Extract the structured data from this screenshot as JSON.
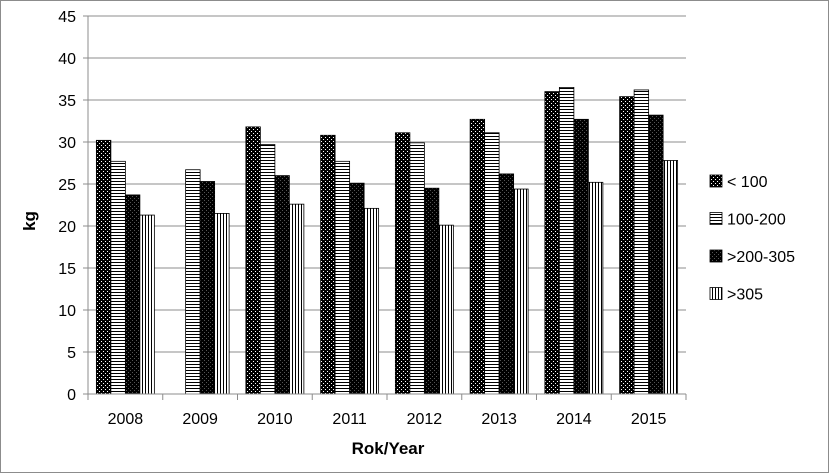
{
  "chart_data": {
    "type": "bar",
    "title": "",
    "xlabel": "Rok/Year",
    "ylabel": "kg",
    "ylim": [
      0,
      45
    ],
    "y_ticks": [
      0,
      5,
      10,
      15,
      20,
      25,
      30,
      35,
      40,
      45
    ],
    "grid": true,
    "legend_position": "right",
    "categories": [
      "2008",
      "2009",
      "2010",
      "2011",
      "2012",
      "2013",
      "2014",
      "2015"
    ],
    "series": [
      {
        "name": "< 100",
        "pattern": "checker",
        "values": [
          30.2,
          null,
          31.8,
          30.8,
          31.1,
          32.7,
          36.0,
          35.4
        ]
      },
      {
        "name": "100-200",
        "pattern": "horizontal",
        "values": [
          27.7,
          26.7,
          29.7,
          27.7,
          29.9,
          31.1,
          36.5,
          36.2
        ]
      },
      {
        "name": ">200-305",
        "pattern": "dark",
        "values": [
          23.7,
          25.3,
          26.0,
          25.1,
          24.5,
          26.2,
          32.7,
          33.2
        ]
      },
      {
        "name": ">305",
        "pattern": "vertical",
        "values": [
          21.3,
          21.5,
          22.6,
          22.1,
          20.1,
          24.4,
          25.2,
          27.8
        ]
      }
    ]
  }
}
